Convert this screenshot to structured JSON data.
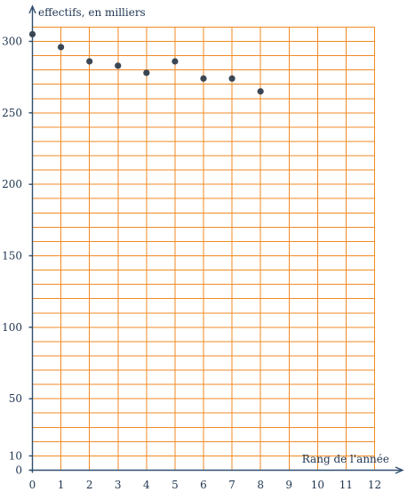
{
  "chart_data": {
    "type": "scatter",
    "xlabel": "Rang de l'année",
    "ylabel": "effectifs, en milliers",
    "xlim": [
      0,
      12
    ],
    "ylim": [
      0,
      310
    ],
    "x_ticks": [
      0,
      1,
      2,
      3,
      4,
      5,
      6,
      7,
      8,
      9,
      10,
      11,
      12
    ],
    "y_tick_labels": [
      0,
      10,
      50,
      100,
      150,
      200,
      250,
      300
    ],
    "grid": true,
    "grid_color": "#f08a24",
    "axis_color": "#2f4e6e",
    "point_color": "#3a4653",
    "series": [
      {
        "x": [
          0,
          1,
          2,
          3,
          4,
          5,
          6,
          7,
          8
        ],
        "y": [
          305,
          296,
          286,
          283,
          278,
          286,
          274,
          274,
          265
        ]
      }
    ]
  }
}
